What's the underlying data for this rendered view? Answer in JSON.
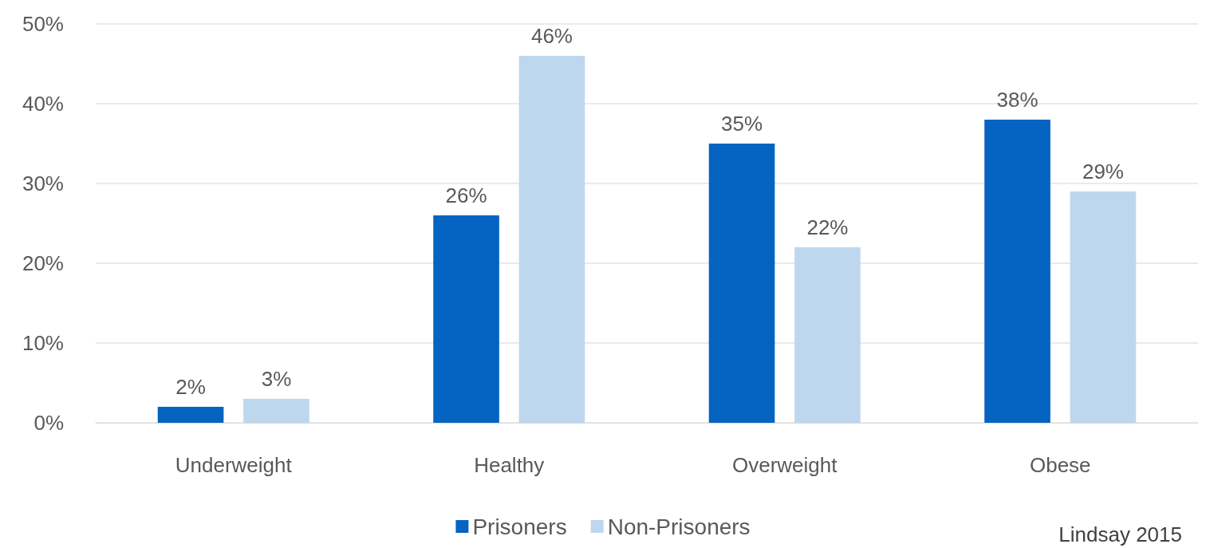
{
  "chart_data": {
    "type": "bar",
    "categories": [
      "Underweight",
      "Healthy",
      "Overweight",
      "Obese"
    ],
    "series": [
      {
        "name": "Prisoners",
        "color": "#0563c1",
        "values": [
          2,
          26,
          35,
          38
        ],
        "value_labels": [
          "2%",
          "26%",
          "35%",
          "38%"
        ]
      },
      {
        "name": "Non-Prisoners",
        "color": "#bdd7ee",
        "values": [
          3,
          46,
          22,
          29
        ],
        "value_labels": [
          "3%",
          "46%",
          "22%",
          "29%"
        ]
      }
    ],
    "ylim": [
      0,
      50
    ],
    "yticks": [
      {
        "value": 0,
        "label": "0%"
      },
      {
        "value": 10,
        "label": "10%"
      },
      {
        "value": 20,
        "label": "20%"
      },
      {
        "value": 30,
        "label": "30%"
      },
      {
        "value": 40,
        "label": "40%"
      },
      {
        "value": 50,
        "label": "50%"
      }
    ],
    "grid": "y",
    "legend": "bottom",
    "annotations": [
      "Lindsay 2015"
    ]
  }
}
